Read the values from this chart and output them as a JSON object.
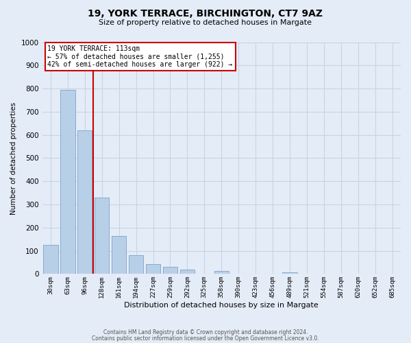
{
  "title": "19, YORK TERRACE, BIRCHINGTON, CT7 9AZ",
  "subtitle": "Size of property relative to detached houses in Margate",
  "xlabel": "Distribution of detached houses by size in Margate",
  "ylabel": "Number of detached properties",
  "bar_labels": [
    "30sqm",
    "63sqm",
    "96sqm",
    "128sqm",
    "161sqm",
    "194sqm",
    "227sqm",
    "259sqm",
    "292sqm",
    "325sqm",
    "358sqm",
    "390sqm",
    "423sqm",
    "456sqm",
    "489sqm",
    "521sqm",
    "554sqm",
    "587sqm",
    "620sqm",
    "652sqm",
    "685sqm"
  ],
  "bar_values": [
    125,
    795,
    620,
    330,
    165,
    80,
    42,
    30,
    20,
    0,
    13,
    0,
    0,
    0,
    7,
    0,
    0,
    0,
    0,
    0,
    0
  ],
  "bar_color": "#b8cfe8",
  "bar_edge_color": "#88aad0",
  "property_line_x": 2.5,
  "annotation_title": "19 YORK TERRACE: 113sqm",
  "annotation_line1": "← 57% of detached houses are smaller (1,255)",
  "annotation_line2": "42% of semi-detached houses are larger (922) →",
  "annotation_box_color": "#ffffff",
  "annotation_box_edge_color": "#cc0000",
  "vline_color": "#cc0000",
  "ylim": [
    0,
    1000
  ],
  "yticks": [
    0,
    100,
    200,
    300,
    400,
    500,
    600,
    700,
    800,
    900,
    1000
  ],
  "grid_color": "#c8d4e4",
  "background_color": "#e4ecf7",
  "footer_line1": "Contains HM Land Registry data © Crown copyright and database right 2024.",
  "footer_line2": "Contains public sector information licensed under the Open Government Licence v3.0."
}
